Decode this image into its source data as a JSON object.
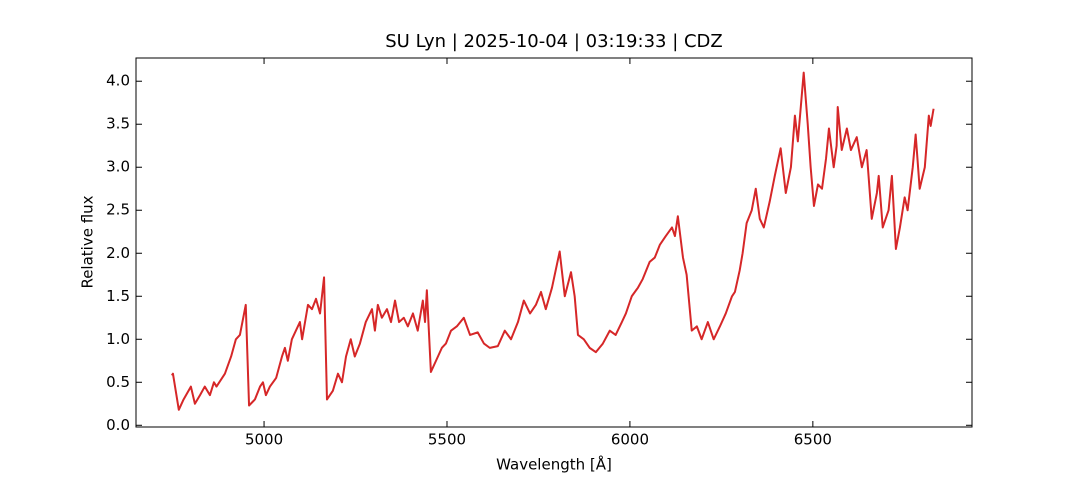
{
  "chart_data": {
    "type": "line",
    "title": "SU Lyn | 2025-10-04 | 03:19:33 | CDZ",
    "x_label": "Wavelength [Å]",
    "y_label": "Relative flux",
    "color": "#d62728",
    "xlim": [
      4650,
      6935
    ],
    "ylim": [
      -0.02,
      4.27
    ],
    "xticks": [
      5000,
      5500,
      6000,
      6500
    ],
    "yticks": [
      {
        "value": 0,
        "label": "0.0"
      },
      {
        "value": 0.5,
        "label": "0.5"
      },
      {
        "value": 1,
        "label": "1.0"
      },
      {
        "value": 1.5,
        "label": "1.5"
      },
      {
        "value": 2,
        "label": "2.0"
      },
      {
        "value": 2.5,
        "label": "2.5"
      },
      {
        "value": 3,
        "label": "3.0"
      },
      {
        "value": 3.5,
        "label": "3.5"
      },
      {
        "value": 4,
        "label": "4.0"
      }
    ],
    "x": [
      4748,
      4751,
      4767,
      4780,
      4800,
      4811,
      4825,
      4838,
      4852,
      4863,
      4870,
      4893,
      4910,
      4923,
      4934,
      4950,
      4959,
      4975,
      4989,
      4997,
      5005,
      5016,
      5033,
      5049,
      5057,
      5065,
      5076,
      5087,
      5098,
      5104,
      5120,
      5131,
      5142,
      5153,
      5164,
      5172,
      5188,
      5202,
      5213,
      5224,
      5237,
      5248,
      5262,
      5278,
      5295,
      5303,
      5311,
      5322,
      5336,
      5347,
      5358,
      5369,
      5382,
      5393,
      5407,
      5420,
      5434,
      5440,
      5445,
      5456,
      5470,
      5486,
      5497,
      5511,
      5527,
      5546,
      5563,
      5584,
      5601,
      5617,
      5639,
      5658,
      5675,
      5694,
      5710,
      5727,
      5743,
      5757,
      5770,
      5787,
      5808,
      5822,
      5839,
      5849,
      5858,
      5874,
      5890,
      5907,
      5926,
      5945,
      5961,
      5978,
      5989,
      6005,
      6022,
      6035,
      6054,
      6068,
      6082,
      6098,
      6115,
      6123,
      6131,
      6145,
      6155,
      6169,
      6183,
      6196,
      6213,
      6229,
      6246,
      6262,
      6279,
      6287,
      6300,
      6308,
      6319,
      6333,
      6344,
      6355,
      6366,
      6382,
      6396,
      6412,
      6426,
      6440,
      6451,
      6459,
      6467,
      6475,
      6486,
      6494,
      6503,
      6514,
      6525,
      6536,
      6544,
      6557,
      6565,
      6568,
      6579,
      6593,
      6604,
      6620,
      6634,
      6647,
      6661,
      6675,
      6680,
      6691,
      6707,
      6716,
      6727,
      6738,
      6751,
      6759,
      6773,
      6781,
      6792,
      6806,
      6817,
      6822,
      6830
    ],
    "values": [
      0.58,
      0.6,
      0.18,
      0.3,
      0.45,
      0.25,
      0.35,
      0.45,
      0.35,
      0.5,
      0.45,
      0.6,
      0.8,
      1.0,
      1.05,
      1.4,
      0.23,
      0.3,
      0.45,
      0.5,
      0.35,
      0.45,
      0.55,
      0.8,
      0.9,
      0.75,
      1.0,
      1.1,
      1.2,
      1.0,
      1.4,
      1.35,
      1.47,
      1.3,
      1.72,
      0.3,
      0.4,
      0.6,
      0.5,
      0.8,
      1.0,
      0.8,
      0.95,
      1.2,
      1.35,
      1.1,
      1.4,
      1.25,
      1.35,
      1.2,
      1.45,
      1.2,
      1.25,
      1.15,
      1.3,
      1.1,
      1.45,
      1.2,
      1.57,
      0.62,
      0.75,
      0.9,
      0.95,
      1.1,
      1.15,
      1.25,
      1.05,
      1.08,
      0.95,
      0.9,
      0.92,
      1.1,
      1.0,
      1.2,
      1.45,
      1.3,
      1.4,
      1.55,
      1.35,
      1.6,
      2.02,
      1.5,
      1.78,
      1.5,
      1.05,
      1.0,
      0.9,
      0.85,
      0.95,
      1.1,
      1.05,
      1.2,
      1.3,
      1.5,
      1.6,
      1.7,
      1.9,
      1.95,
      2.1,
      2.2,
      2.3,
      2.2,
      2.43,
      1.95,
      1.75,
      1.1,
      1.15,
      1.0,
      1.2,
      1.0,
      1.15,
      1.3,
      1.5,
      1.55,
      1.8,
      2.0,
      2.35,
      2.5,
      2.75,
      2.4,
      2.3,
      2.6,
      2.9,
      3.22,
      2.7,
      3.0,
      3.6,
      3.3,
      3.7,
      4.1,
      3.5,
      3.0,
      2.55,
      2.8,
      2.75,
      3.1,
      3.45,
      3.0,
      3.25,
      3.7,
      3.2,
      3.45,
      3.2,
      3.35,
      3.0,
      3.2,
      2.4,
      2.7,
      2.9,
      2.3,
      2.5,
      2.9,
      2.05,
      2.3,
      2.65,
      2.5,
      3.0,
      3.38,
      2.75,
      3.0,
      3.6,
      3.48,
      3.68
    ]
  }
}
